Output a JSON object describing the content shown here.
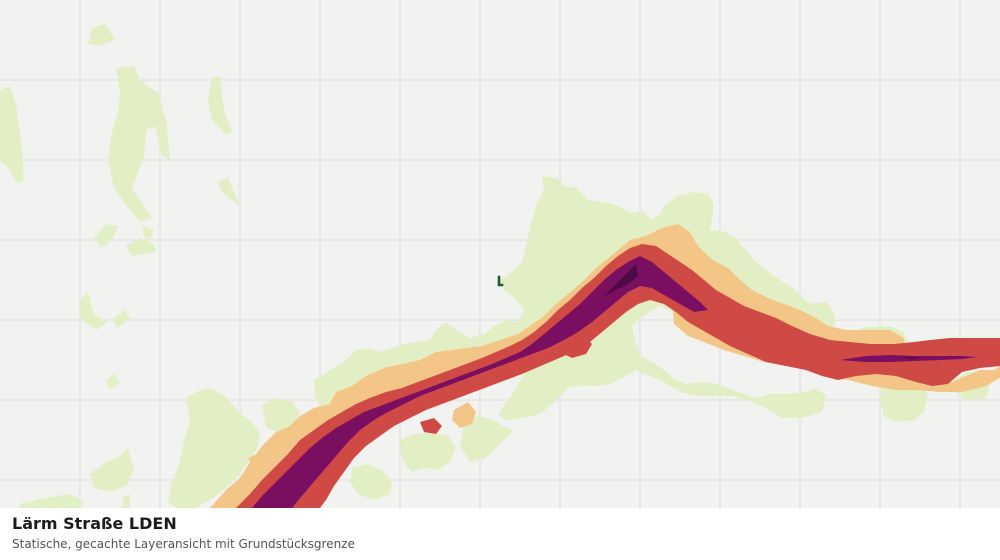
{
  "layer": {
    "title": "Lärm Straße LDEN",
    "subtitle": "Statische, gecachte Layeransicht mit Grundstücksgrenze"
  },
  "colors": {
    "background": "#f2f3f0",
    "grid": "#dcdedb",
    "zone_low": "#e2efc4",
    "zone_mid": "#f3c586",
    "zone_high": "#cf4a44",
    "zone_very_high": "#7a0e60",
    "zone_peak": "#4e0a47",
    "parcel_boundary": "#1f5c2e"
  },
  "icons": {
    "parcel_marker": "parcel-boundary-icon"
  }
}
